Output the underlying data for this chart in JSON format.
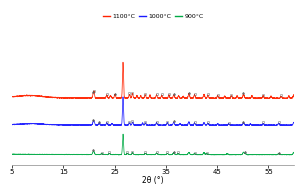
{
  "xlabel": "2θ (°)",
  "xlim": [
    5,
    60
  ],
  "legend_labels": [
    "1100°C",
    "1000°C",
    "900°C"
  ],
  "legend_colors": [
    "#ff2200",
    "#1a1aff",
    "#00aa44"
  ],
  "bg_color": "#ffffff",
  "xticks": [
    5,
    15,
    25,
    35,
    45,
    55
  ],
  "offsets": [
    0.54,
    0.33,
    0.1
  ],
  "curve_scale": [
    0.28,
    0.22,
    0.16
  ],
  "quartz_main": 26.65,
  "quartz_main_amp": 1.0,
  "seeds": [
    42,
    59,
    76
  ]
}
